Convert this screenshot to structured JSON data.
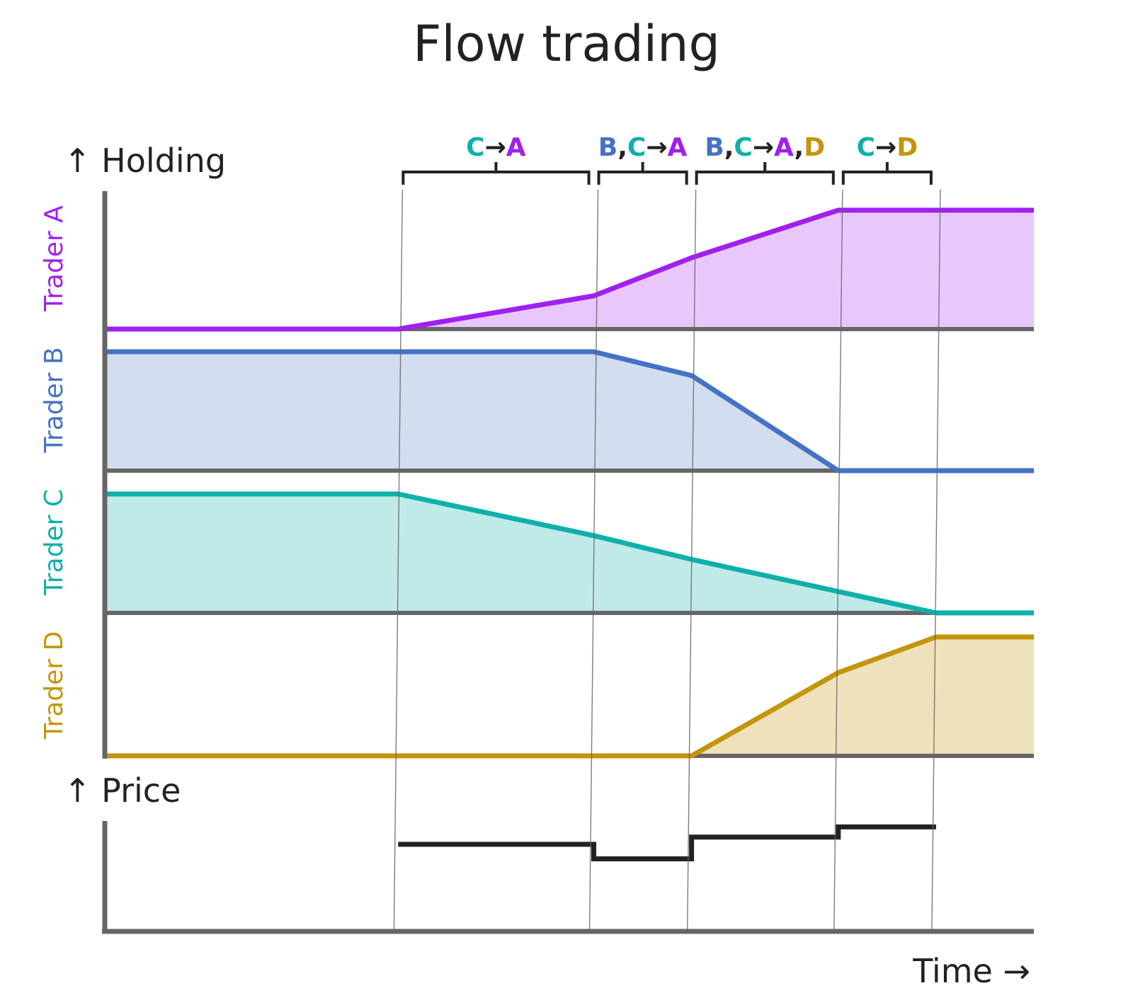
{
  "title": "Flow trading",
  "holding_label": "↑ Holding",
  "price_label": "↑ Price",
  "time_label": "Time →",
  "colors": {
    "A": "#a020f0",
    "B": "#4472c4",
    "C": "#0fb0aa",
    "D": "#c4950a",
    "ink": "#222222",
    "axis": "#666666"
  },
  "traders": [
    {
      "id": "A",
      "label": "Trader A",
      "holding": [
        0,
        0,
        0.28,
        0.6,
        1,
        1,
        1
      ]
    },
    {
      "id": "B",
      "label": "Trader B",
      "holding": [
        1,
        1,
        1,
        0.8,
        0,
        0,
        0
      ]
    },
    {
      "id": "C",
      "label": "Trader C",
      "holding": [
        1,
        1,
        0.65,
        0.45,
        0.18,
        0,
        0
      ]
    },
    {
      "id": "D",
      "label": "Trader D",
      "holding": [
        0,
        0,
        0,
        0,
        0.7,
        1,
        1
      ]
    }
  ],
  "time_points": [
    0,
    3,
    5,
    6,
    7.5,
    8.5,
    9.5
  ],
  "segments": [
    {
      "parts": [
        {
          "text": "C",
          "who": "C"
        },
        {
          "text": "→",
          "who": "ink"
        },
        {
          "text": "A",
          "who": "A"
        }
      ]
    },
    {
      "parts": [
        {
          "text": "B",
          "who": "B"
        },
        {
          "text": ",",
          "who": "ink"
        },
        {
          "text": "C",
          "who": "C"
        },
        {
          "text": "→",
          "who": "ink"
        },
        {
          "text": "A",
          "who": "A"
        }
      ]
    },
    {
      "parts": [
        {
          "text": "B",
          "who": "B"
        },
        {
          "text": ",",
          "who": "ink"
        },
        {
          "text": "C",
          "who": "C"
        },
        {
          "text": "→",
          "who": "ink"
        },
        {
          "text": "A",
          "who": "A"
        },
        {
          "text": ",",
          "who": "ink"
        },
        {
          "text": "D",
          "who": "D"
        }
      ]
    },
    {
      "parts": [
        {
          "text": "C",
          "who": "C"
        },
        {
          "text": "→",
          "who": "ink"
        },
        {
          "text": "D",
          "who": "D"
        }
      ]
    }
  ],
  "price": [
    0.6,
    0.5,
    0.65,
    0.72
  ]
}
